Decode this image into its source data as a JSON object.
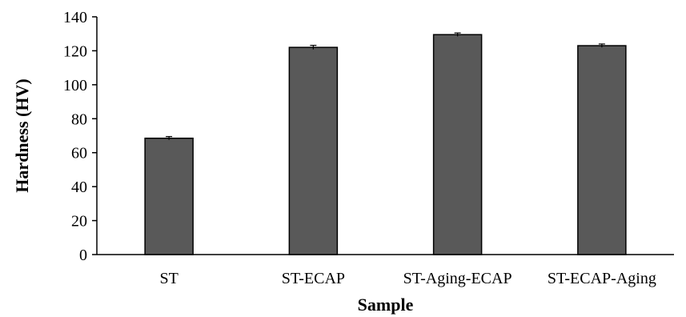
{
  "chart_data": {
    "type": "bar",
    "categories": [
      "ST",
      "ST-ECAP",
      "ST-Aging-ECAP",
      "ST-ECAP-Aging"
    ],
    "values": [
      68.5,
      122,
      129.5,
      123
    ],
    "errors": [
      1.0,
      1.2,
      1.0,
      1.0
    ],
    "title": "",
    "xlabel": "Sample",
    "ylabel": "Hardness (HV)",
    "ylim": [
      0,
      140
    ],
    "yticks": [
      0,
      20,
      40,
      60,
      80,
      100,
      120,
      140
    ],
    "grid": false,
    "legend": "none",
    "bar_color": "#595959",
    "bar_edge_color": "#000000"
  }
}
